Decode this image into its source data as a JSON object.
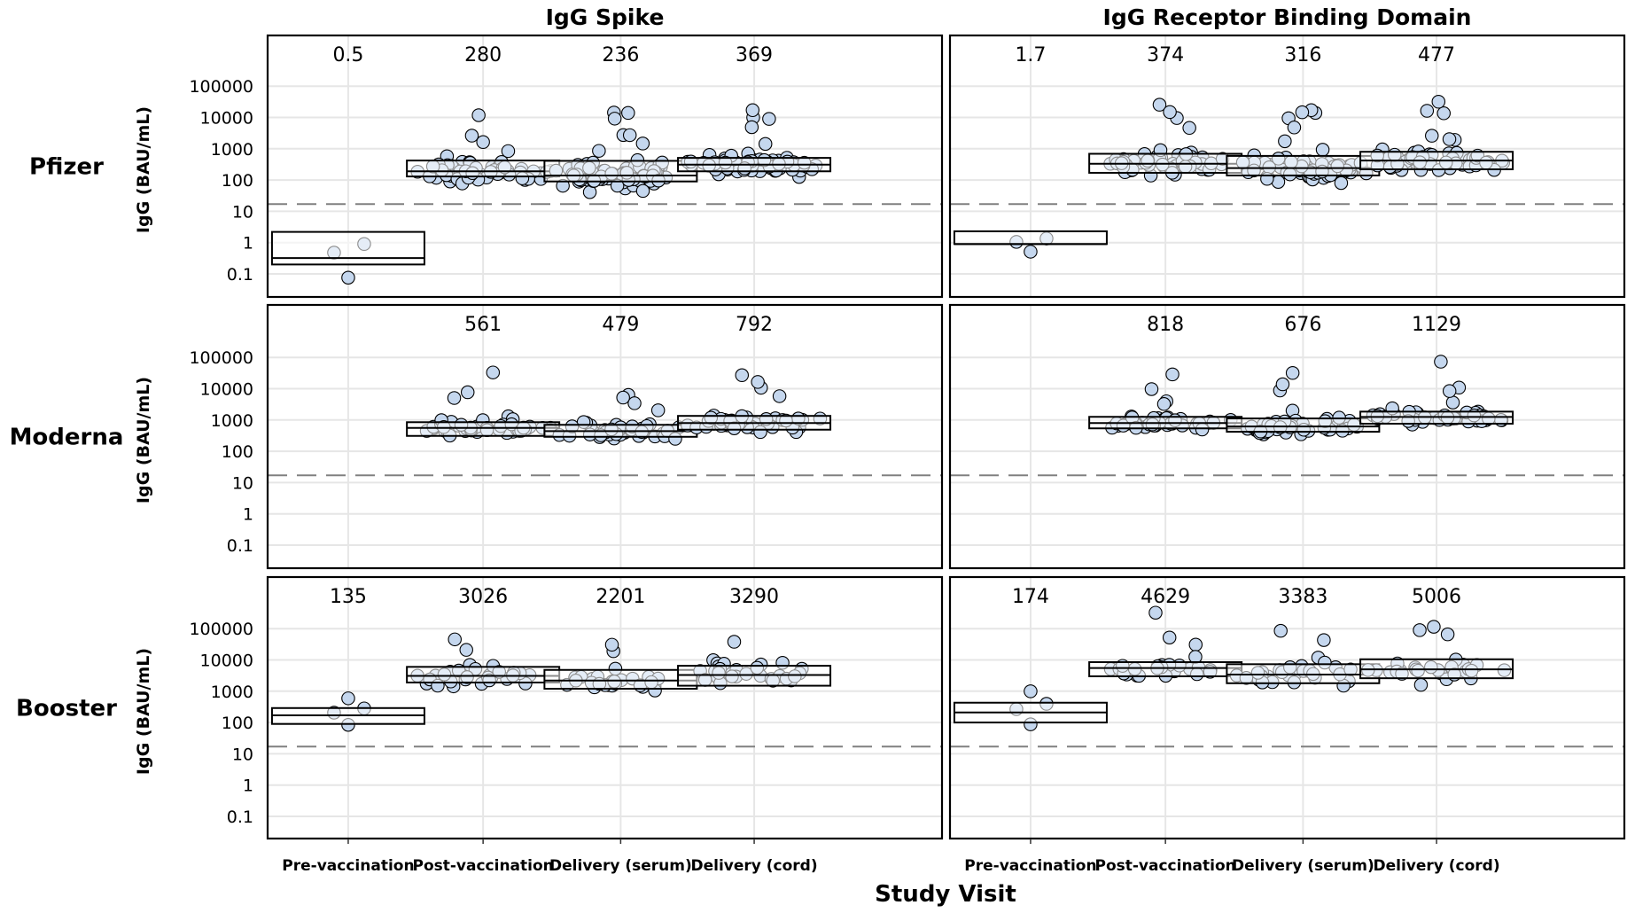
{
  "chart_data": {
    "type": "box-dot",
    "xlabel": "Study Visit",
    "ylabel": "IgG (BAU/mL)",
    "y_scale": "log10",
    "ylim": [
      0.05,
      500000
    ],
    "y_ticks": [
      0.1,
      1,
      10,
      100,
      1000,
      10000,
      100000
    ],
    "y_tick_labels": [
      "0.1",
      "1",
      "10",
      "100",
      "1000",
      "10000",
      "100000"
    ],
    "categories": [
      "Pre-vaccination",
      "Post-vaccination",
      "Delivery (serum)",
      "Delivery (cord)"
    ],
    "columns": [
      "IgG Spike",
      "IgG Receptor Binding Domain"
    ],
    "rows": [
      "Pfizer",
      "Moderna",
      "Booster"
    ],
    "threshold": 17,
    "grid": true,
    "point_color": "#c5d7ee",
    "panels": [
      {
        "row": "Pfizer",
        "column": "IgG Spike",
        "groups": [
          {
            "category": "Pre-vaccination",
            "gmt": "0.5",
            "q1": 0.2,
            "median": 0.32,
            "q3": 2.2,
            "n": 3
          },
          {
            "category": "Post-vaccination",
            "gmt": "280",
            "q1": 130,
            "median": 190,
            "q3": 420,
            "n": 60
          },
          {
            "category": "Delivery (serum)",
            "gmt": "236",
            "q1": 90,
            "median": 140,
            "q3": 410,
            "n": 75
          },
          {
            "category": "Delivery (cord)",
            "gmt": "369",
            "q1": 190,
            "median": 310,
            "q3": 510,
            "n": 70
          }
        ]
      },
      {
        "row": "Pfizer",
        "column": "IgG Receptor Binding Domain",
        "groups": [
          {
            "category": "Pre-vaccination",
            "gmt": "1.7",
            "q1": 0.9,
            "median": 0.9,
            "q3": 2.3,
            "n": 3
          },
          {
            "category": "Post-vaccination",
            "gmt": "374",
            "q1": 170,
            "median": 330,
            "q3": 690,
            "n": 60
          },
          {
            "category": "Delivery (serum)",
            "gmt": "316",
            "q1": 140,
            "median": 240,
            "q3": 590,
            "n": 75
          },
          {
            "category": "Delivery (cord)",
            "gmt": "477",
            "q1": 220,
            "median": 420,
            "q3": 800,
            "n": 70
          }
        ]
      },
      {
        "row": "Moderna",
        "column": "IgG Spike",
        "groups": [
          {
            "category": "Post-vaccination",
            "gmt": "561",
            "q1": 310,
            "median": 560,
            "q3": 850,
            "n": 45
          },
          {
            "category": "Delivery (serum)",
            "gmt": "479",
            "q1": 290,
            "median": 440,
            "q3": 700,
            "n": 45
          },
          {
            "category": "Delivery (cord)",
            "gmt": "792",
            "q1": 490,
            "median": 800,
            "q3": 1350,
            "n": 45
          }
        ]
      },
      {
        "row": "Moderna",
        "column": "IgG Receptor Binding Domain",
        "groups": [
          {
            "category": "Post-vaccination",
            "gmt": "818",
            "q1": 540,
            "median": 800,
            "q3": 1260,
            "n": 45
          },
          {
            "category": "Delivery (serum)",
            "gmt": "676",
            "q1": 420,
            "median": 620,
            "q3": 1120,
            "n": 45
          },
          {
            "category": "Delivery (cord)",
            "gmt": "1129",
            "q1": 760,
            "median": 1250,
            "q3": 1850,
            "n": 45
          }
        ]
      },
      {
        "row": "Booster",
        "column": "IgG Spike",
        "groups": [
          {
            "category": "Pre-vaccination",
            "gmt": "135",
            "q1": 90,
            "median": 170,
            "q3": 290,
            "n": 4
          },
          {
            "category": "Post-vaccination",
            "gmt": "3026",
            "q1": 1900,
            "median": 3100,
            "q3": 6000,
            "n": 30
          },
          {
            "category": "Delivery (serum)",
            "gmt": "2201",
            "q1": 1200,
            "median": 2200,
            "q3": 4800,
            "n": 30
          },
          {
            "category": "Delivery (cord)",
            "gmt": "3290",
            "q1": 1500,
            "median": 3300,
            "q3": 6500,
            "n": 30
          }
        ]
      },
      {
        "row": "Booster",
        "column": "IgG Receptor Binding Domain",
        "groups": [
          {
            "category": "Pre-vaccination",
            "gmt": "174",
            "q1": 100,
            "median": 210,
            "q3": 430,
            "n": 4
          },
          {
            "category": "Post-vaccination",
            "gmt": "4629",
            "q1": 3000,
            "median": 5500,
            "q3": 8500,
            "n": 30
          },
          {
            "category": "Delivery (serum)",
            "gmt": "3383",
            "q1": 1800,
            "median": 3400,
            "q3": 7300,
            "n": 30
          },
          {
            "category": "Delivery (cord)",
            "gmt": "5006",
            "q1": 2600,
            "median": 5000,
            "q3": 10500,
            "n": 30
          }
        ]
      }
    ]
  }
}
